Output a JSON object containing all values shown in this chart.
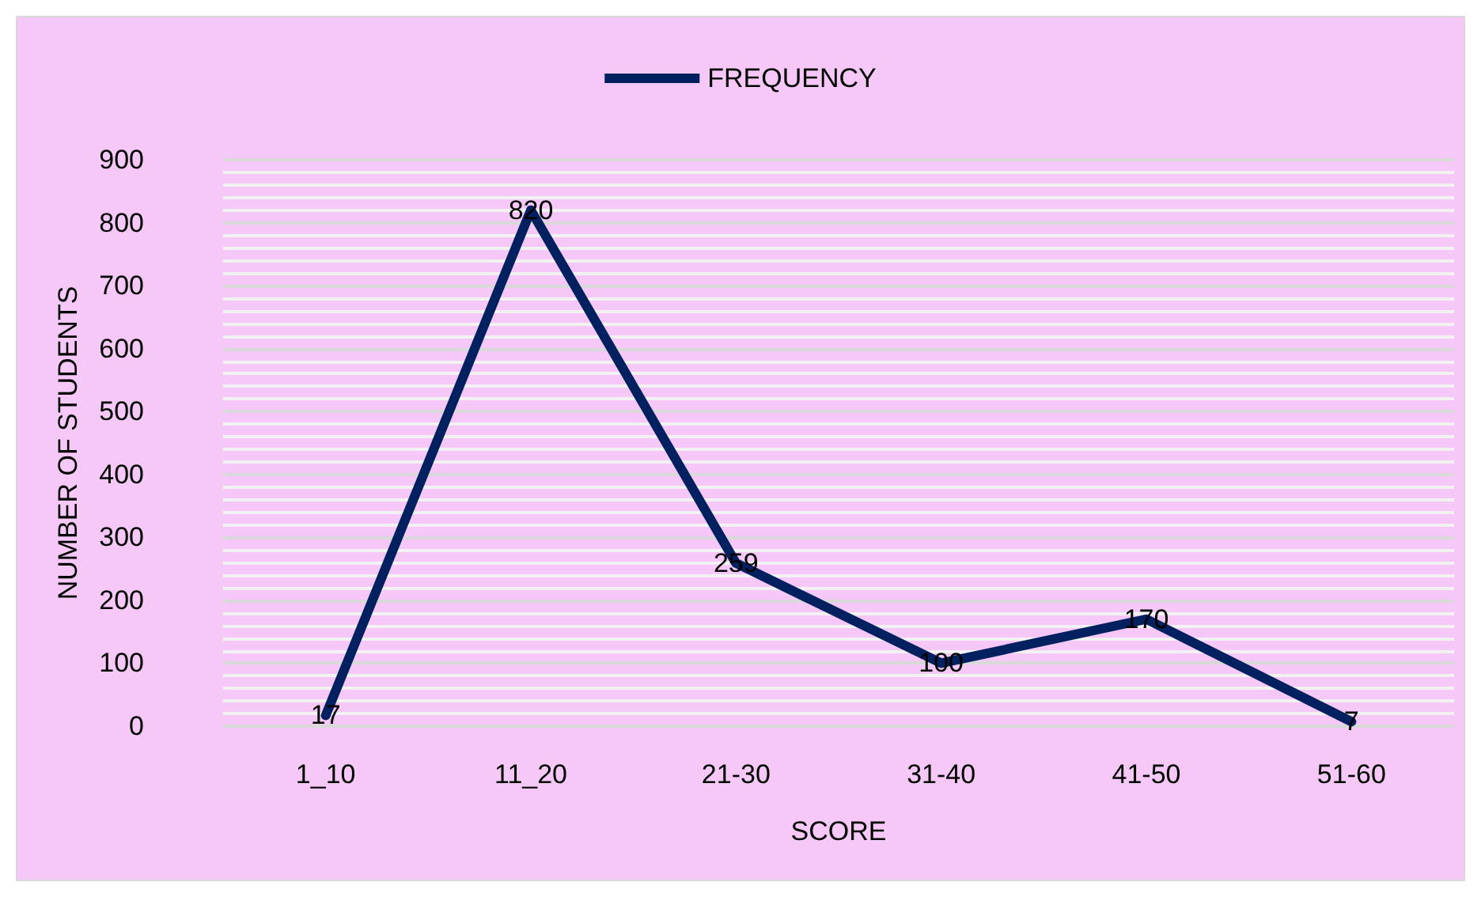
{
  "chart_data": {
    "type": "line",
    "xlabel": "SCORE",
    "ylabel": "NUMBER OF STUDENTS",
    "categories": [
      "1_10",
      "11_20",
      "21-30",
      "31-40",
      "41-50",
      "51-60"
    ],
    "series": [
      {
        "name": "FREQUENCY",
        "color": "#002060",
        "values": [
          17,
          820,
          259,
          100,
          170,
          7
        ]
      }
    ],
    "ylim": [
      0,
      900
    ],
    "yticks": [
      0,
      100,
      200,
      300,
      400,
      500,
      600,
      700,
      800,
      900
    ],
    "grid": "y",
    "legend": "top",
    "data_labels": true,
    "marker": "none",
    "line_style": "solid"
  }
}
